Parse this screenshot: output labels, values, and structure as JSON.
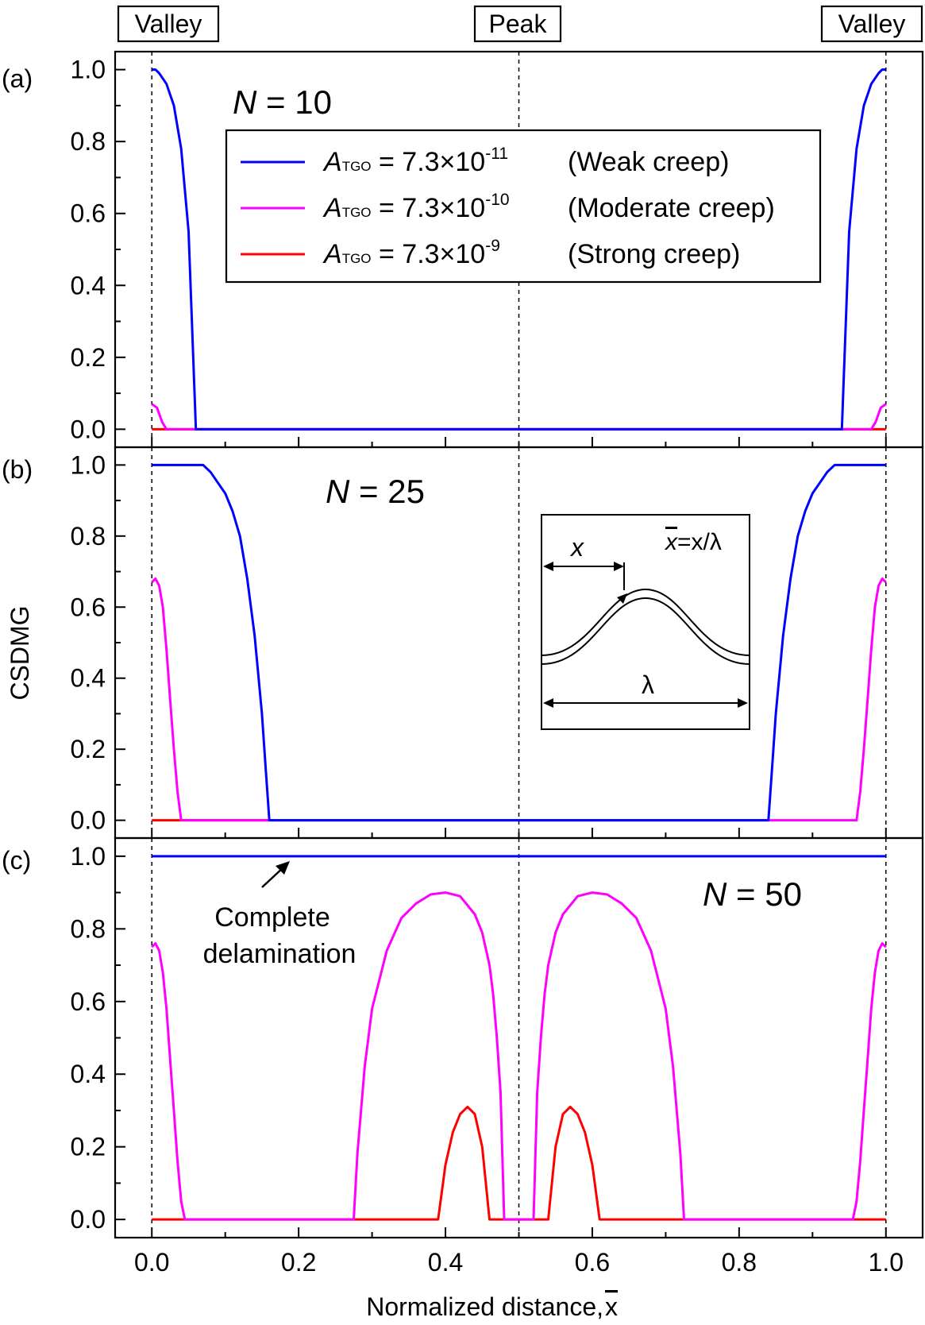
{
  "figure": {
    "top_labels": [
      "Valley",
      "Peak",
      "Valley"
    ],
    "ylabel": "CSDMG",
    "xlabel": "Normalized distance, ",
    "xlabel_symbol": "x"
  },
  "legend": {
    "entries": [
      {
        "symbol": "A",
        "subscript": "TGO",
        "value": " = 7.3×10",
        "exponent": "-11",
        "note": "(Weak creep)",
        "color": "#0000ff"
      },
      {
        "symbol": "A",
        "subscript": "TGO",
        "value": " = 7.3×10",
        "exponent": "-10",
        "note": "(Moderate creep)",
        "color": "#ff00ff"
      },
      {
        "symbol": "A",
        "subscript": "TGO",
        "value": " = 7.3×10",
        "exponent": "-9",
        "note": "(Strong creep)",
        "color": "#ff0000"
      }
    ]
  },
  "inset": {
    "x_label": "x",
    "formula_xbar": "x",
    "formula_rest": "=x/λ",
    "lambda": "λ"
  },
  "annotation": {
    "line1": "Complete",
    "line2": "delamination"
  },
  "chart_data": [
    {
      "panel_label": "(a)",
      "annotation": "N = 10",
      "N_symbol": "N",
      "N_value": " = 10",
      "type": "line",
      "xlim": [
        -0.05,
        1.05
      ],
      "ylim": [
        -0.05,
        1.05
      ],
      "x_ticks": [
        "0.0",
        "0.2",
        "0.4",
        "0.6",
        "0.8",
        "1.0"
      ],
      "y_ticks": [
        "0.0",
        "0.2",
        "0.4",
        "0.6",
        "0.8",
        "1.0"
      ],
      "series": [
        {
          "name": "Weak creep",
          "color": "#0000ff",
          "x": [
            0.0,
            0.005,
            0.01,
            0.02,
            0.03,
            0.04,
            0.05,
            0.06,
            0.94,
            0.95,
            0.96,
            0.97,
            0.98,
            0.99,
            0.995,
            1.0
          ],
          "y": [
            1.0,
            1.0,
            0.99,
            0.96,
            0.9,
            0.78,
            0.55,
            0.0,
            0.0,
            0.55,
            0.78,
            0.9,
            0.96,
            0.99,
            1.0,
            1.0
          ]
        },
        {
          "name": "Moderate creep",
          "color": "#ff00ff",
          "x": [
            0.0,
            0.007,
            0.014,
            0.02,
            0.98,
            0.986,
            0.993,
            1.0
          ],
          "y": [
            0.07,
            0.06,
            0.02,
            0.0,
            0.0,
            0.02,
            0.06,
            0.07
          ]
        },
        {
          "name": "Strong creep",
          "color": "#ff0000",
          "x": [
            0.0,
            1.0
          ],
          "y": [
            0.0,
            0.0
          ]
        }
      ]
    },
    {
      "panel_label": "(b)",
      "annotation": "N = 25",
      "N_symbol": "N",
      "N_value": " = 25",
      "type": "line",
      "xlim": [
        -0.05,
        1.05
      ],
      "ylim": [
        -0.05,
        1.05
      ],
      "x_ticks": [
        "0.0",
        "0.2",
        "0.4",
        "0.6",
        "0.8",
        "1.0"
      ],
      "y_ticks": [
        "0.0",
        "0.2",
        "0.4",
        "0.6",
        "0.8",
        "1.0"
      ],
      "series": [
        {
          "name": "Weak creep",
          "color": "#0000ff",
          "x": [
            0.0,
            0.07,
            0.08,
            0.09,
            0.1,
            0.11,
            0.12,
            0.13,
            0.14,
            0.15,
            0.155,
            0.16,
            0.84,
            0.845,
            0.85,
            0.86,
            0.87,
            0.88,
            0.89,
            0.9,
            0.91,
            0.92,
            0.93,
            1.0
          ],
          "y": [
            1.0,
            1.0,
            0.98,
            0.95,
            0.92,
            0.87,
            0.8,
            0.68,
            0.52,
            0.3,
            0.15,
            0.0,
            0.0,
            0.15,
            0.3,
            0.52,
            0.68,
            0.8,
            0.87,
            0.92,
            0.95,
            0.98,
            1.0,
            1.0
          ]
        },
        {
          "name": "Moderate creep",
          "color": "#ff00ff",
          "x": [
            0.0,
            0.005,
            0.01,
            0.015,
            0.02,
            0.025,
            0.03,
            0.035,
            0.04,
            0.96,
            0.965,
            0.97,
            0.975,
            0.98,
            0.985,
            0.99,
            0.995,
            1.0
          ],
          "y": [
            0.67,
            0.68,
            0.66,
            0.6,
            0.48,
            0.34,
            0.2,
            0.08,
            0.0,
            0.0,
            0.08,
            0.2,
            0.34,
            0.48,
            0.6,
            0.66,
            0.68,
            0.67
          ]
        },
        {
          "name": "Strong creep",
          "color": "#ff0000",
          "x": [
            0.0,
            0.16
          ],
          "y": [
            0.0,
            0.0
          ]
        }
      ]
    },
    {
      "panel_label": "(c)",
      "annotation": "N = 50",
      "N_symbol": "N",
      "N_value": " = 50",
      "type": "line",
      "xlim": [
        -0.05,
        1.05
      ],
      "ylim": [
        -0.05,
        1.05
      ],
      "x_ticks": [
        "0.0",
        "0.2",
        "0.4",
        "0.6",
        "0.8",
        "1.0"
      ],
      "x_tick_labels_shown": true,
      "y_ticks": [
        "0.0",
        "0.2",
        "0.4",
        "0.6",
        "0.8",
        "1.0"
      ],
      "series": [
        {
          "name": "Weak creep",
          "color": "#0000ff",
          "x": [
            0.0,
            1.0
          ],
          "y": [
            1.0,
            1.0
          ]
        },
        {
          "name": "Moderate creep",
          "color": "#ff00ff",
          "x": [
            0.0,
            0.005,
            0.01,
            0.015,
            0.02,
            0.025,
            0.03,
            0.035,
            0.04,
            0.045,
            0.275,
            0.28,
            0.29,
            0.3,
            0.32,
            0.34,
            0.36,
            0.38,
            0.4,
            0.42,
            0.44,
            0.45,
            0.46,
            0.465,
            0.47,
            0.475,
            0.48,
            0.52,
            0.525,
            0.53,
            0.535,
            0.54,
            0.55,
            0.56,
            0.58,
            0.6,
            0.62,
            0.64,
            0.66,
            0.68,
            0.7,
            0.71,
            0.72,
            0.725,
            0.955,
            0.96,
            0.965,
            0.97,
            0.975,
            0.98,
            0.985,
            0.99,
            0.995,
            1.0
          ],
          "y": [
            0.75,
            0.76,
            0.74,
            0.68,
            0.58,
            0.44,
            0.3,
            0.16,
            0.05,
            0.0,
            0.0,
            0.18,
            0.42,
            0.58,
            0.74,
            0.83,
            0.87,
            0.895,
            0.9,
            0.89,
            0.84,
            0.79,
            0.7,
            0.62,
            0.5,
            0.35,
            0.0,
            0.0,
            0.35,
            0.5,
            0.62,
            0.7,
            0.79,
            0.84,
            0.89,
            0.9,
            0.895,
            0.87,
            0.83,
            0.74,
            0.58,
            0.42,
            0.18,
            0.0,
            0.0,
            0.05,
            0.16,
            0.3,
            0.44,
            0.58,
            0.68,
            0.74,
            0.76,
            0.75
          ]
        },
        {
          "name": "Strong creep",
          "color": "#ff0000",
          "x": [
            0.0,
            0.39,
            0.4,
            0.41,
            0.42,
            0.43,
            0.44,
            0.45,
            0.46,
            0.47,
            0.53,
            0.54,
            0.55,
            0.56,
            0.57,
            0.58,
            0.59,
            0.6,
            0.61,
            1.0
          ],
          "y": [
            0.0,
            0.0,
            0.15,
            0.24,
            0.29,
            0.31,
            0.29,
            0.2,
            0.0,
            0.0,
            0.0,
            0.0,
            0.2,
            0.29,
            0.31,
            0.29,
            0.24,
            0.15,
            0.0,
            0.0
          ]
        }
      ]
    }
  ]
}
